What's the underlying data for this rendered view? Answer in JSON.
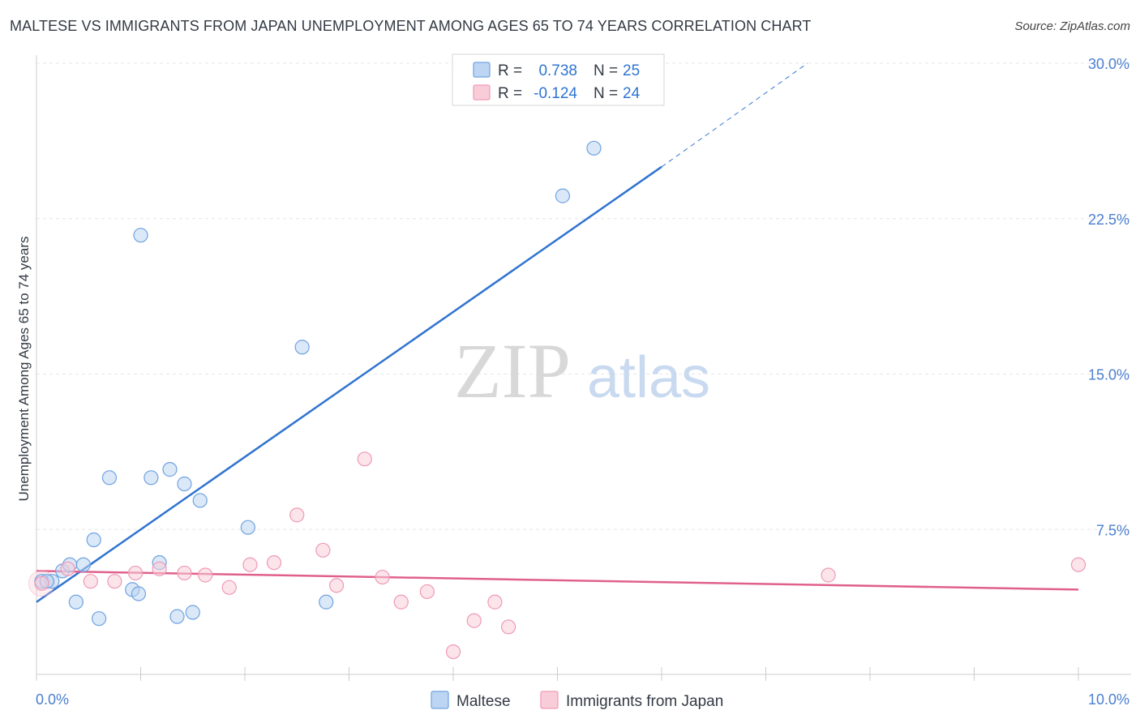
{
  "header": {
    "title": "MALTESE VS IMMIGRANTS FROM JAPAN UNEMPLOYMENT AMONG AGES 65 TO 74 YEARS CORRELATION CHART",
    "source": "Source: ZipAtlas.com"
  },
  "watermark": {
    "part1": "ZIP",
    "part2": "atlas"
  },
  "chart_data": {
    "type": "scatter",
    "xlabel": "",
    "ylabel": "Unemployment Among Ages 65 to 74 years",
    "xlim": [
      0,
      10
    ],
    "ylim": [
      0,
      30
    ],
    "x_tick_labels": [
      {
        "value": 0,
        "label": "0.0%"
      },
      {
        "value": 10,
        "label": "10.0%"
      }
    ],
    "y_tick_labels": [
      {
        "value": 7.5,
        "label": "7.5%"
      },
      {
        "value": 15,
        "label": "15.0%"
      },
      {
        "value": 22.5,
        "label": "22.5%"
      },
      {
        "value": 30,
        "label": "30.0%"
      }
    ],
    "legend_stats": [
      {
        "r_label": "R =",
        "r_value": "0.738",
        "n_label": "N =",
        "n_value": "25",
        "color": "#6fa3e0"
      },
      {
        "r_label": "R =",
        "r_value": "-0.124",
        "n_label": "N =",
        "n_value": "24",
        "color": "#f09ab5"
      }
    ],
    "legend_placement": "top-center",
    "grid": true,
    "series": [
      {
        "name": "Maltese",
        "color": "#6fa3e0",
        "fill": "#bcd5f3",
        "line_color": "#2f74d0",
        "points": [
          [
            0.05,
            5.0
          ],
          [
            0.15,
            5.0
          ],
          [
            0.25,
            5.5
          ],
          [
            0.32,
            5.8
          ],
          [
            0.38,
            4.0
          ],
          [
            0.45,
            5.8
          ],
          [
            0.55,
            7.0
          ],
          [
            0.6,
            3.2
          ],
          [
            0.7,
            10.0
          ],
          [
            0.92,
            4.6
          ],
          [
            0.98,
            4.4
          ],
          [
            1.0,
            21.7
          ],
          [
            1.1,
            10.0
          ],
          [
            1.18,
            5.9
          ],
          [
            1.28,
            10.4
          ],
          [
            1.35,
            3.3
          ],
          [
            1.42,
            9.7
          ],
          [
            1.5,
            3.5
          ],
          [
            1.57,
            8.9
          ],
          [
            2.03,
            7.6
          ],
          [
            2.55,
            16.3
          ],
          [
            2.78,
            4.0
          ],
          [
            5.05,
            23.6
          ],
          [
            5.35,
            25.9
          ],
          [
            0.1,
            5.0
          ]
        ],
        "trend": {
          "x0": 0.0,
          "y0": 4.0,
          "x1": 6.0,
          "y1": 25.0,
          "dash_x1": 7.4,
          "dash_y1": 30.0
        }
      },
      {
        "name": "Immigrants from Japan",
        "color": "#f09ab5",
        "fill": "#f8cdd9",
        "line_color": "#e0608c",
        "points": [
          [
            0.05,
            4.9
          ],
          [
            0.3,
            5.6
          ],
          [
            0.52,
            5.0
          ],
          [
            0.75,
            5.0
          ],
          [
            0.95,
            5.4
          ],
          [
            1.18,
            5.6
          ],
          [
            1.42,
            5.4
          ],
          [
            1.62,
            5.3
          ],
          [
            1.85,
            4.7
          ],
          [
            2.05,
            5.8
          ],
          [
            2.28,
            5.9
          ],
          [
            2.5,
            8.2
          ],
          [
            2.75,
            6.5
          ],
          [
            2.88,
            4.8
          ],
          [
            3.15,
            10.9
          ],
          [
            3.32,
            5.2
          ],
          [
            3.5,
            4.0
          ],
          [
            3.75,
            4.5
          ],
          [
            4.0,
            1.6
          ],
          [
            4.2,
            3.1
          ],
          [
            4.4,
            4.0
          ],
          [
            4.53,
            2.8
          ],
          [
            7.6,
            5.3
          ],
          [
            10.0,
            5.8
          ]
        ],
        "trend": {
          "x0": 0.0,
          "y0": 5.5,
          "x1": 10.0,
          "y1": 4.6
        }
      }
    ]
  }
}
